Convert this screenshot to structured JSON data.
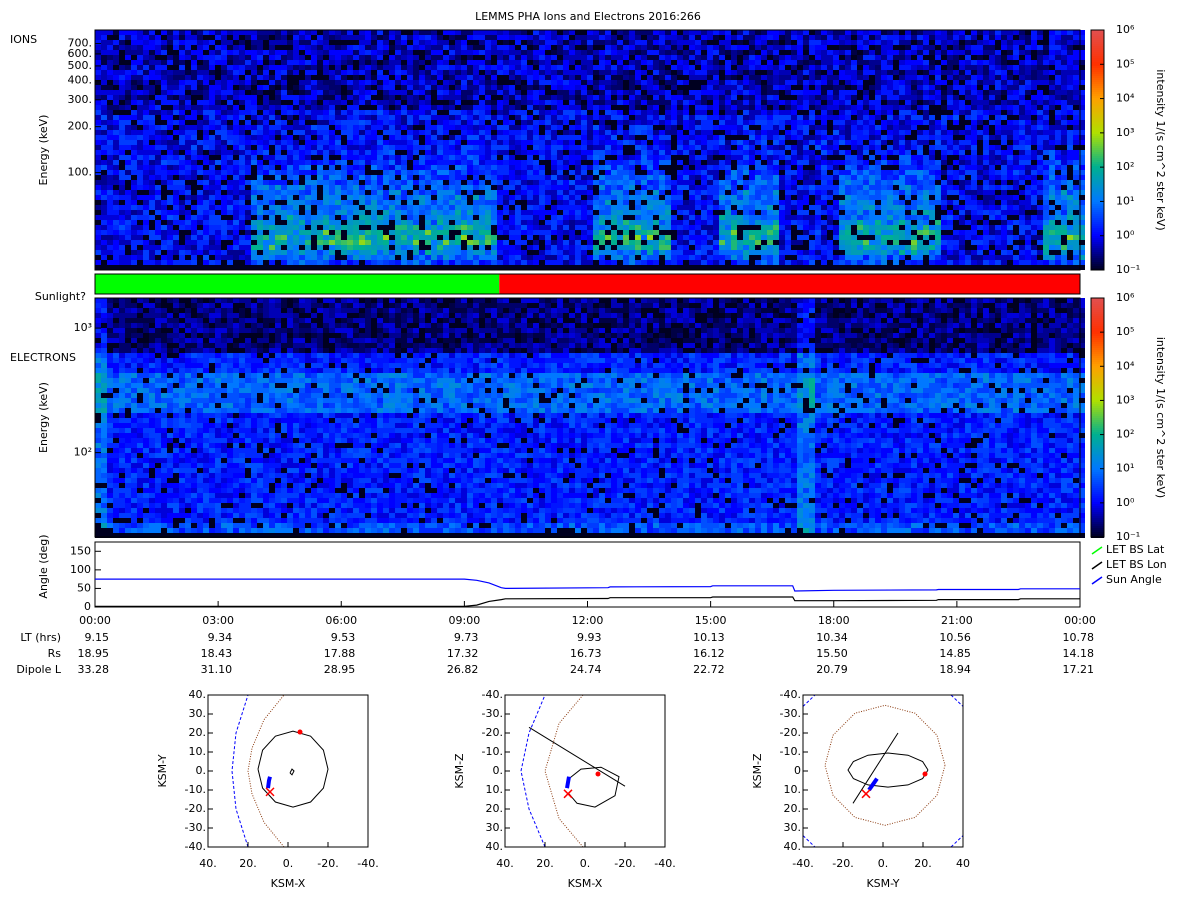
{
  "chart_data": [
    {
      "type": "spectrogram",
      "title": "LEMMS PHA Ions and Electrons  2016:266",
      "label": "IONS",
      "ylabel": "Energy (keV)",
      "ylog": true,
      "ylim": [
        23,
        860
      ],
      "yticks": [
        {
          "value": 700,
          "label": "700."
        },
        {
          "value": 600,
          "label": "600."
        },
        {
          "value": 500,
          "label": "500."
        },
        {
          "value": 400,
          "label": "400."
        },
        {
          "value": 300,
          "label": "300."
        },
        {
          "value": 200,
          "label": "200."
        },
        {
          "value": 100,
          "label": "100."
        }
      ],
      "colorbar": {
        "label": "intensity 1/(s cm^2 ster keV)",
        "lim": [
          0.1,
          1000000
        ],
        "log": true,
        "colors": [
          "#000020",
          "#0000ff",
          "#0078ff",
          "#00b090",
          "#b0e000",
          "#ffa000",
          "#ff3000",
          "#e05050"
        ],
        "ticks": [
          {
            "value": 0.1,
            "label": "10⁻¹"
          },
          {
            "value": 1,
            "label": "10⁰"
          },
          {
            "value": 10,
            "label": "10¹"
          },
          {
            "value": 100,
            "label": "10²"
          },
          {
            "value": 1000,
            "label": "10³"
          },
          {
            "value": 10000,
            "label": "10⁴"
          },
          {
            "value": 100000,
            "label": "10⁵"
          },
          {
            "value": 1000000,
            "label": "10⁶"
          }
        ]
      }
    },
    {
      "type": "timebar",
      "label": "Sunlight?",
      "segments": [
        {
          "color": "#00ff00",
          "x": [
            0,
            9.85
          ]
        },
        {
          "color": "#ff0000",
          "x": [
            9.85,
            24
          ]
        }
      ]
    },
    {
      "type": "spectrogram",
      "label": "ELECTRONS",
      "ylabel": "Energy (keV)",
      "ylog": true,
      "ylim": [
        21,
        1745
      ],
      "yticks": [
        {
          "value": 100,
          "label": "10²"
        },
        {
          "value": 1000,
          "label": "10³"
        }
      ],
      "colorbar": {
        "label": "intensity 1/(s cm^2 ster keV)",
        "lim": [
          0.1,
          1000000
        ],
        "log": true,
        "colors": [
          "#000020",
          "#0000ff",
          "#0078ff",
          "#00b090",
          "#b0e000",
          "#ffa000",
          "#ff3000",
          "#e05050"
        ],
        "ticks": [
          {
            "value": 0.1,
            "label": "10⁻¹"
          },
          {
            "value": 1,
            "label": "10⁰"
          },
          {
            "value": 10,
            "label": "10¹"
          },
          {
            "value": 100,
            "label": "10²"
          },
          {
            "value": 1000,
            "label": "10³"
          },
          {
            "value": 10000,
            "label": "10⁴"
          },
          {
            "value": 100000,
            "label": "10⁵"
          },
          {
            "value": 1000000,
            "label": "10⁶"
          }
        ]
      }
    },
    {
      "type": "line",
      "ylabel": "Angle (deg)",
      "xlim": [
        0,
        24
      ],
      "ylim": [
        0,
        175
      ],
      "yticks": [
        0,
        50,
        100,
        150
      ],
      "legend": "right",
      "xticks": [
        {
          "value": 0,
          "label": "00:00"
        },
        {
          "value": 3,
          "label": "03:00"
        },
        {
          "value": 6,
          "label": "06:00"
        },
        {
          "value": 9,
          "label": "09:00"
        },
        {
          "value": 12,
          "label": "12:00"
        },
        {
          "value": 15,
          "label": "15:00"
        },
        {
          "value": 18,
          "label": "18:00"
        },
        {
          "value": 21,
          "label": "21:00"
        },
        {
          "value": 24,
          "label": "00:00"
        }
      ],
      "x": [
        0,
        9,
        9.3,
        9.6,
        9.9,
        10,
        12.5,
        12.55,
        15,
        15.05,
        17,
        17.05,
        18,
        20.5,
        20.55,
        22.5,
        22.55,
        24
      ],
      "series": [
        {
          "name": "LET BS Lat",
          "color": "#00ff00",
          "values": [
            null,
            null,
            null,
            null,
            null,
            null,
            null,
            null,
            null,
            null,
            null,
            null,
            null,
            null,
            null,
            null,
            null,
            null
          ]
        },
        {
          "name": "LET BS Lon",
          "color": "#000000",
          "values": [
            2,
            2,
            5,
            15,
            20,
            22,
            23,
            25,
            25,
            27,
            27,
            17,
            17,
            18,
            20,
            20,
            22,
            22
          ]
        },
        {
          "name": "Sun Angle",
          "color": "#0000ff",
          "values": [
            75,
            75,
            72,
            65,
            52,
            50,
            52,
            54,
            55,
            57,
            57,
            43,
            45,
            46,
            47,
            47,
            49,
            49
          ]
        }
      ]
    },
    {
      "type": "orbit",
      "xlabel": "KSM-X",
      "ylabel": "KSM-Y",
      "xlim": [
        40,
        -40
      ],
      "ylim": [
        40,
        -40
      ],
      "xticks": [
        {
          "value": 40,
          "label": "40."
        },
        {
          "value": 20,
          "label": "20."
        },
        {
          "value": 0,
          "label": "0."
        },
        {
          "value": -20,
          "label": "-20."
        },
        {
          "value": -40,
          "label": "-40."
        }
      ],
      "yticks": [
        {
          "value": -40,
          "label": "-40."
        },
        {
          "value": -30,
          "label": "-30."
        },
        {
          "value": -20,
          "label": "-20."
        },
        {
          "value": -10,
          "label": "-10."
        },
        {
          "value": 0,
          "label": "0."
        },
        {
          "value": 10,
          "label": "10."
        },
        {
          "value": 20,
          "label": "20."
        },
        {
          "value": 30,
          "label": "30."
        },
        {
          "value": 40,
          "label": "40."
        }
      ],
      "series": [
        {
          "color": "#0000ff",
          "style": "dashed",
          "x": [
            20,
            26,
            28,
            26,
            20
          ],
          "y": [
            -40,
            -20,
            0,
            20,
            40
          ]
        },
        {
          "color": "#8b3a0f",
          "style": "dotted",
          "x": [
            2,
            12,
            18,
            20,
            18,
            12,
            2
          ],
          "y": [
            -40,
            -27,
            -12,
            0,
            12,
            27,
            40
          ]
        },
        {
          "color": "#000000",
          "style": "solid",
          "x": [
            15,
            12.7,
            6.3,
            -2.5,
            -11.3,
            -17.7,
            -20,
            -17.7,
            -11.3,
            -2.5,
            6.3,
            12.7,
            15,
            null,
            -1,
            -2,
            -3,
            -2,
            -1
          ],
          "y": [
            1,
            11,
            18.3,
            21,
            18.3,
            11,
            1,
            -9,
            -16.3,
            -19,
            -16.3,
            -9,
            1,
            null,
            -1,
            -2,
            0,
            1,
            -1
          ]
        },
        {
          "color": "#0000ff",
          "style": "thick",
          "x": [
            10,
            9.5,
            9
          ],
          "y": [
            -9,
            -5,
            -3
          ]
        },
        {
          "color": "#ff0000",
          "style": "cross",
          "x": [
            9
          ],
          "y": [
            -11
          ]
        },
        {
          "color": "#ff0000",
          "style": "dot",
          "x": [
            -6
          ],
          "y": [
            20.5
          ]
        }
      ]
    },
    {
      "type": "orbit",
      "xlabel": "KSM-X",
      "ylabel": "KSM-Z",
      "xlim": [
        40,
        -40
      ],
      "ylim": [
        -40,
        40
      ],
      "xticks": [
        {
          "value": 40,
          "label": "40."
        },
        {
          "value": 20,
          "label": "20."
        },
        {
          "value": 0,
          "label": "0."
        },
        {
          "value": -20,
          "label": "-20."
        },
        {
          "value": -40,
          "label": "-40."
        }
      ],
      "yticks": [
        {
          "value": 40,
          "label": "40."
        },
        {
          "value": 30,
          "label": "30."
        },
        {
          "value": 20,
          "label": "20."
        },
        {
          "value": 10,
          "label": "10."
        },
        {
          "value": 0,
          "label": "0."
        },
        {
          "value": -10,
          "label": "-10."
        },
        {
          "value": -20,
          "label": "-20."
        },
        {
          "value": -30,
          "label": "-30."
        },
        {
          "value": -40,
          "label": "-40."
        }
      ],
      "series": [
        {
          "color": "#0000ff",
          "style": "dashed",
          "x": [
            20,
            28,
            32,
            28,
            20
          ],
          "y": [
            40,
            20,
            0,
            -20,
            -40
          ]
        },
        {
          "color": "#8b3a0f",
          "style": "dotted",
          "x": [
            1,
            13,
            20,
            13,
            1
          ],
          "y": [
            40,
            25,
            0,
            -25,
            -40
          ]
        },
        {
          "color": "#000000",
          "style": "solid",
          "x": [
            28,
            -20,
            null,
            8,
            4,
            -5,
            -15,
            -17,
            -8,
            2,
            8
          ],
          "y": [
            -23,
            8,
            null,
            12,
            17,
            19,
            13,
            3,
            -2,
            -1,
            4
          ]
        },
        {
          "color": "#0000ff",
          "style": "thick",
          "x": [
            9,
            8.5,
            8
          ],
          "y": [
            9,
            6,
            3
          ]
        },
        {
          "color": "#ff0000",
          "style": "cross",
          "x": [
            8.5
          ],
          "y": [
            12
          ]
        },
        {
          "color": "#ff0000",
          "style": "dot",
          "x": [
            -6.5
          ],
          "y": [
            1.6
          ]
        }
      ]
    },
    {
      "type": "orbit",
      "xlabel": "KSM-Y",
      "ylabel": "KSM-Z",
      "xlim": [
        -40,
        40
      ],
      "ylim": [
        -40,
        40
      ],
      "xticks": [
        {
          "value": -40,
          "label": "-40."
        },
        {
          "value": -20,
          "label": "-20."
        },
        {
          "value": 0,
          "label": "0."
        },
        {
          "value": 20,
          "label": "20."
        },
        40
      ],
      "yticks": [
        {
          "value": 40,
          "label": "40."
        },
        {
          "value": 30,
          "label": "30."
        },
        {
          "value": 20,
          "label": "20."
        },
        {
          "value": 10,
          "label": "10."
        },
        0,
        {
          "value": -10,
          "label": "-10."
        },
        {
          "value": -20,
          "label": "-20."
        },
        {
          "value": -30,
          "label": "-30."
        },
        {
          "value": -40,
          "label": "-40."
        }
      ],
      "series": [
        {
          "color": "#0000ff",
          "style": "dashed",
          "x": [
            -40,
            -34,
            null,
            34,
            40,
            null,
            -40,
            -34,
            null,
            34,
            40
          ],
          "y": [
            34,
            40,
            null,
            40,
            34,
            null,
            -34,
            -40,
            null,
            -40,
            -34
          ]
        },
        {
          "color": "#8b3a0f",
          "style": "dotted",
          "x": [
            31,
            27,
            16,
            1,
            -14,
            -25,
            -29,
            -25,
            -14,
            1,
            16,
            27,
            31
          ],
          "y": [
            -3,
            12.8,
            24.4,
            28.6,
            24.4,
            12.8,
            -3,
            -18.8,
            -30.4,
            -34.6,
            -30.4,
            -18.8,
            -3
          ]
        },
        {
          "color": "#000000",
          "style": "solid",
          "x": [
            22.5,
            19.8,
            12.5,
            2.5,
            -7.5,
            -14.8,
            -17.5,
            -14.8,
            -7.5,
            2.5,
            12.5,
            19.8,
            22.5,
            null,
            -15,
            7.5
          ],
          "y": [
            -0.5,
            4,
            7.3,
            8.5,
            7.3,
            4,
            -0.5,
            -5,
            -8.3,
            -9.5,
            -8.3,
            -5,
            -0.5,
            null,
            17,
            -20
          ]
        },
        {
          "color": "#0000ff",
          "style": "thick",
          "x": [
            -7,
            -5,
            -3
          ],
          "y": [
            10,
            7,
            4
          ]
        },
        {
          "color": "#ff0000",
          "style": "cross",
          "x": [
            -8.5
          ],
          "y": [
            12
          ]
        },
        {
          "color": "#ff0000",
          "style": "dot",
          "x": [
            21
          ],
          "y": [
            1.6
          ]
        }
      ]
    }
  ],
  "ephemeris": {
    "rows": [
      {
        "label": "LT (hrs)",
        "values": [
          "9.15",
          "9.34",
          "9.53",
          "9.73",
          "9.93",
          "10.13",
          "10.34",
          "10.56",
          "10.78"
        ]
      },
      {
        "label": "Rs",
        "values": [
          "18.95",
          "18.43",
          "17.88",
          "17.32",
          "16.73",
          "16.12",
          "15.50",
          "14.85",
          "14.18"
        ]
      },
      {
        "label": "Dipole L",
        "values": [
          "33.28",
          "31.10",
          "28.95",
          "26.82",
          "24.74",
          "22.72",
          "20.79",
          "18.94",
          "17.21"
        ]
      }
    ]
  }
}
